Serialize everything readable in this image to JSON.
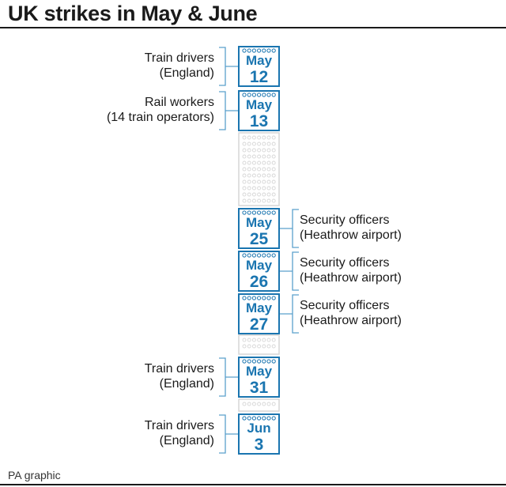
{
  "title": "UK strikes in May & June",
  "credit": "PA graphic",
  "colors": {
    "accent": "#1a75b0",
    "bracket": "#5aa0cc",
    "faded": "#d6d6d6",
    "text": "#1a1a1a"
  },
  "events": [
    {
      "month": "May",
      "day": "12",
      "side": "left",
      "line1": "Train drivers",
      "line2": "(England)"
    },
    {
      "month": "May",
      "day": "13",
      "side": "left",
      "line1": "Rail workers",
      "line2": "(14 train operators)"
    },
    {
      "month": "May",
      "day": "25",
      "side": "right",
      "line1": "Security officers",
      "line2": "(Heathrow airport)"
    },
    {
      "month": "May",
      "day": "26",
      "side": "right",
      "line1": "Security officers",
      "line2": "(Heathrow airport)"
    },
    {
      "month": "May",
      "day": "27",
      "side": "right",
      "line1": "Security officers",
      "line2": "(Heathrow airport)"
    },
    {
      "month": "May",
      "day": "31",
      "side": "left",
      "line1": "Train drivers",
      "line2": "(England)"
    },
    {
      "month": "Jun",
      "day": "3",
      "side": "left",
      "line1": "Train drivers",
      "line2": "(England)"
    }
  ]
}
